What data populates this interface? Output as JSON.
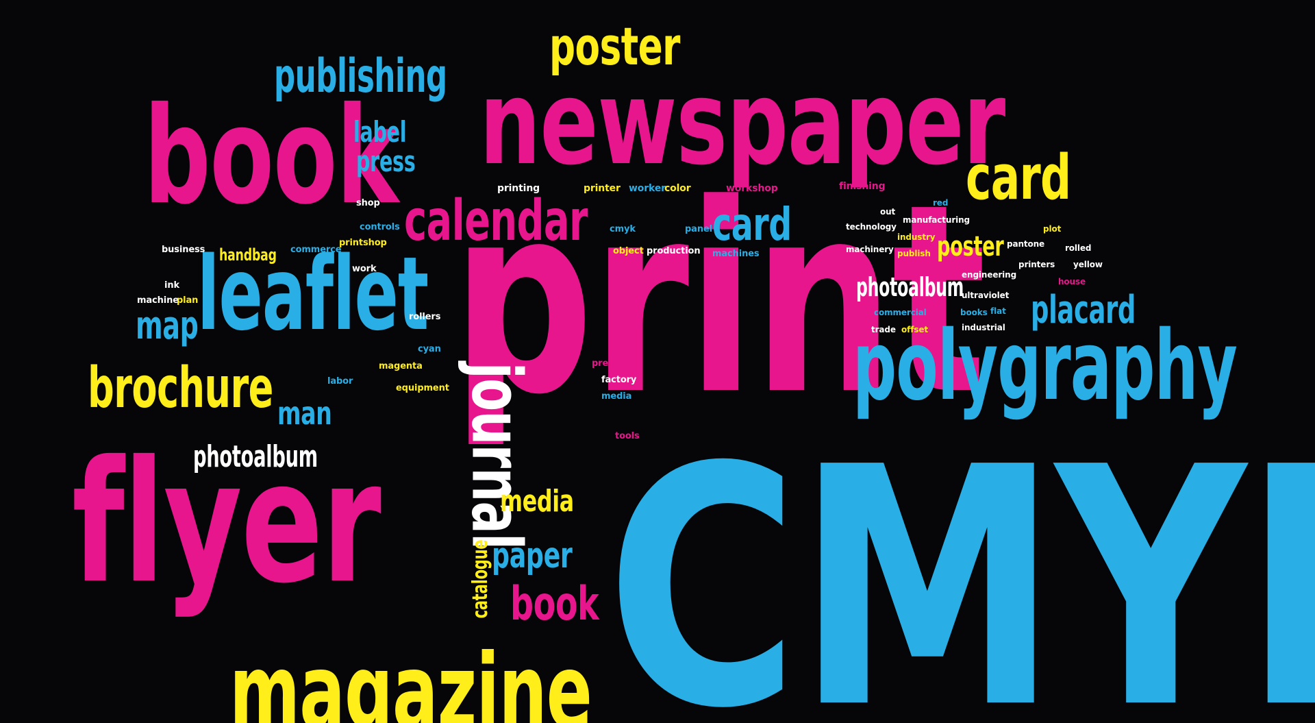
{
  "palette": {
    "background": "#060609",
    "cyan": "#29aee6",
    "magenta": "#e7168c",
    "yellow": "#ffee19",
    "white": "#ffffff"
  },
  "words": [
    {
      "text": "CMYK",
      "color": "cyan"
    },
    {
      "text": "print",
      "color": "magenta"
    },
    {
      "text": "newspaper",
      "color": "magenta"
    },
    {
      "text": "book",
      "color": "magenta"
    },
    {
      "text": "flyer",
      "color": "magenta"
    },
    {
      "text": "magazine",
      "color": "yellow"
    },
    {
      "text": "polygraphy",
      "color": "cyan"
    },
    {
      "text": "leaflet",
      "color": "cyan"
    },
    {
      "text": "calendar",
      "color": "magenta"
    },
    {
      "text": "brochure",
      "color": "yellow"
    },
    {
      "text": "journal",
      "color": "white"
    },
    {
      "text": "poster",
      "color": "yellow"
    },
    {
      "text": "publishing",
      "color": "cyan"
    },
    {
      "text": "card",
      "color": "yellow"
    },
    {
      "text": "card",
      "color": "cyan"
    },
    {
      "text": "placard",
      "color": "cyan"
    },
    {
      "text": "photoalbum",
      "color": "white"
    },
    {
      "text": "photoalbum",
      "color": "white"
    },
    {
      "text": "map",
      "color": "cyan"
    },
    {
      "text": "man",
      "color": "cyan"
    },
    {
      "text": "book",
      "color": "magenta"
    },
    {
      "text": "paper",
      "color": "cyan"
    },
    {
      "text": "media",
      "color": "yellow"
    },
    {
      "text": "catalogue",
      "color": "yellow"
    },
    {
      "text": "label",
      "color": "cyan"
    },
    {
      "text": "press",
      "color": "cyan"
    },
    {
      "text": "poster",
      "color": "yellow"
    },
    {
      "text": "handbag",
      "color": "yellow"
    },
    {
      "text": "printing",
      "color": "white"
    },
    {
      "text": "printer",
      "color": "yellow"
    },
    {
      "text": "worker",
      "color": "cyan"
    },
    {
      "text": "color",
      "color": "yellow"
    },
    {
      "text": "workshop",
      "color": "magenta"
    },
    {
      "text": "finishing",
      "color": "magenta"
    },
    {
      "text": "shop",
      "color": "white"
    },
    {
      "text": "controls",
      "color": "cyan"
    },
    {
      "text": "cmyk",
      "color": "cyan"
    },
    {
      "text": "panel",
      "color": "cyan"
    },
    {
      "text": "business",
      "color": "white"
    },
    {
      "text": "commerce",
      "color": "cyan"
    },
    {
      "text": "printshop",
      "color": "yellow"
    },
    {
      "text": "object",
      "color": "yellow"
    },
    {
      "text": "production",
      "color": "white"
    },
    {
      "text": "machines",
      "color": "cyan"
    },
    {
      "text": "work",
      "color": "white"
    },
    {
      "text": "ink",
      "color": "white"
    },
    {
      "text": "machine",
      "color": "white"
    },
    {
      "text": "plan",
      "color": "yellow"
    },
    {
      "text": "rollers",
      "color": "white"
    },
    {
      "text": "cyan",
      "color": "cyan"
    },
    {
      "text": "labor",
      "color": "cyan"
    },
    {
      "text": "magenta",
      "color": "yellow"
    },
    {
      "text": "equipment",
      "color": "yellow"
    },
    {
      "text": "presses",
      "color": "magenta"
    },
    {
      "text": "factory",
      "color": "white"
    },
    {
      "text": "media",
      "color": "cyan"
    },
    {
      "text": "tools",
      "color": "magenta"
    },
    {
      "text": "out",
      "color": "white"
    },
    {
      "text": "technology",
      "color": "white"
    },
    {
      "text": "manufacturing",
      "color": "white"
    },
    {
      "text": "red",
      "color": "cyan"
    },
    {
      "text": "industry",
      "color": "yellow"
    },
    {
      "text": "machinery",
      "color": "white"
    },
    {
      "text": "publish",
      "color": "yellow"
    },
    {
      "text": "pantone",
      "color": "white"
    },
    {
      "text": "plot",
      "color": "yellow"
    },
    {
      "text": "rolled",
      "color": "white"
    },
    {
      "text": "engineering",
      "color": "white"
    },
    {
      "text": "printers",
      "color": "white"
    },
    {
      "text": "yellow",
      "color": "white"
    },
    {
      "text": "house",
      "color": "magenta"
    },
    {
      "text": "ultraviolet",
      "color": "white"
    },
    {
      "text": "commercial",
      "color": "cyan"
    },
    {
      "text": "books",
      "color": "cyan"
    },
    {
      "text": "flat",
      "color": "cyan"
    },
    {
      "text": "trade",
      "color": "white"
    },
    {
      "text": "offset",
      "color": "yellow"
    },
    {
      "text": "industrial",
      "color": "white"
    }
  ]
}
